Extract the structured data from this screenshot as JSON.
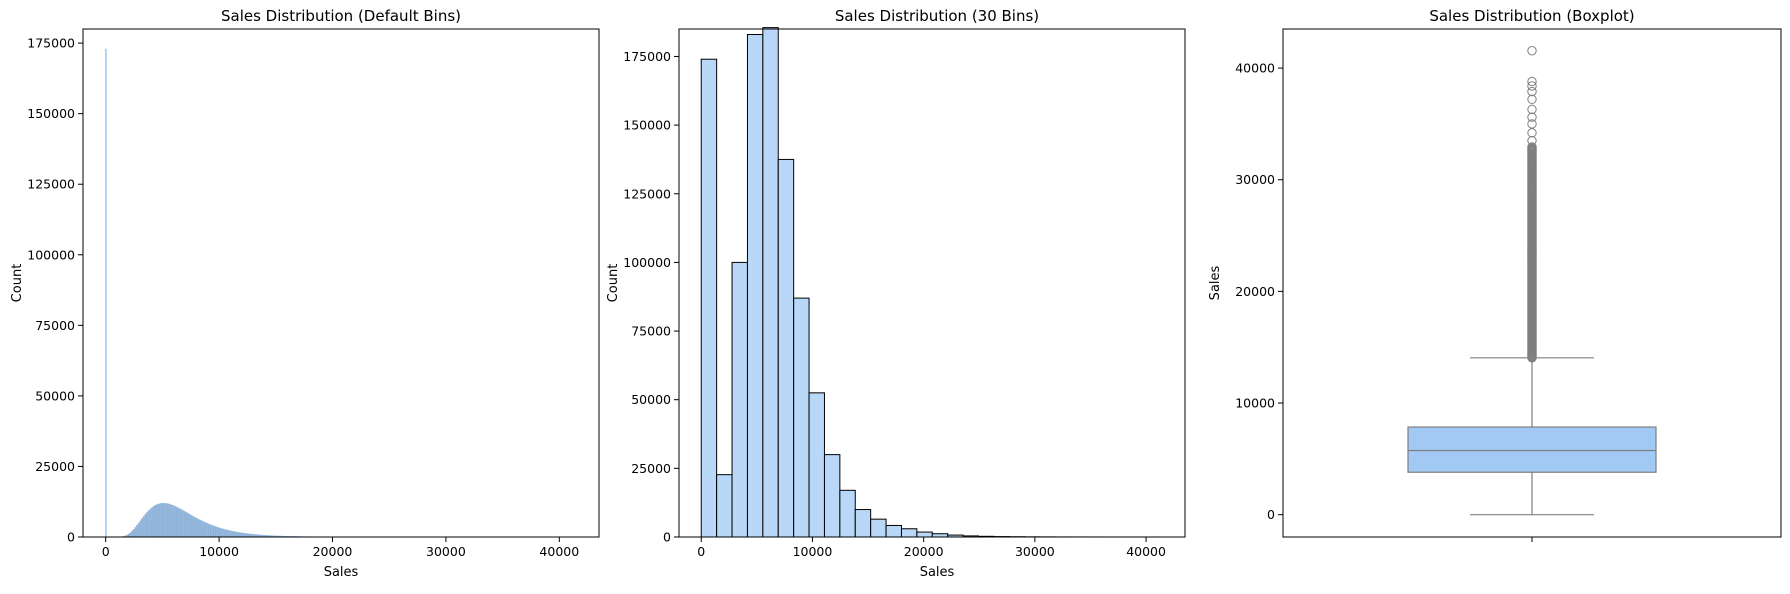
{
  "colors": {
    "bar": "#a1c9f4",
    "bar_fill_30": "#b9d7f6",
    "bar_edge": "#000000",
    "box_fill": "#a1c9f4",
    "box_line": "#7f7f7f",
    "hist_default": "#8fb2d9"
  },
  "chart_data": [
    {
      "type": "histogram",
      "title": "Sales Distribution (Default Bins)",
      "xlabel": "Sales",
      "ylabel": "Count",
      "xlim": [
        -2000,
        43500
      ],
      "ylim": [
        0,
        180000
      ],
      "xticks": [
        0,
        10000,
        20000,
        30000,
        40000
      ],
      "yticks": [
        0,
        25000,
        50000,
        75000,
        100000,
        125000,
        150000,
        175000
      ],
      "zero_bin": {
        "x": 0,
        "count": 173000
      },
      "peak": {
        "x": 5500,
        "count": 12000
      },
      "tail_end": 25000,
      "x_max": 41551
    },
    {
      "type": "histogram",
      "title": "Sales Distribution (30 Bins)",
      "xlabel": "Sales",
      "ylabel": "Count",
      "xlim": [
        -2000,
        43500
      ],
      "ylim": [
        0,
        185000
      ],
      "xticks": [
        0,
        10000,
        20000,
        30000,
        40000
      ],
      "yticks": [
        0,
        25000,
        50000,
        75000,
        100000,
        125000,
        150000,
        175000
      ],
      "bin_width": 1385,
      "bin_start": 0,
      "counts": [
        174000,
        22700,
        100000,
        183000,
        185500,
        137500,
        87000,
        52500,
        30000,
        17000,
        10000,
        6500,
        4200,
        3000,
        1800,
        1200,
        700,
        400,
        250,
        150,
        100,
        60,
        40,
        25,
        15,
        10,
        5,
        3,
        2,
        1
      ]
    },
    {
      "type": "boxplot",
      "title": "Sales Distribution (Boxplot)",
      "ylabel": "Sales",
      "ylim": [
        -2000,
        43500
      ],
      "yticks": [
        0,
        10000,
        20000,
        30000,
        40000
      ],
      "min": 0,
      "q1": 3800,
      "median": 5750,
      "q3": 7850,
      "whisker_high": 14050,
      "outlier_range": [
        14050,
        33000
      ],
      "outliers_sparse": [
        33500,
        34200,
        35000,
        35600,
        36300,
        37200,
        37900,
        38400,
        38800,
        41551
      ]
    }
  ]
}
